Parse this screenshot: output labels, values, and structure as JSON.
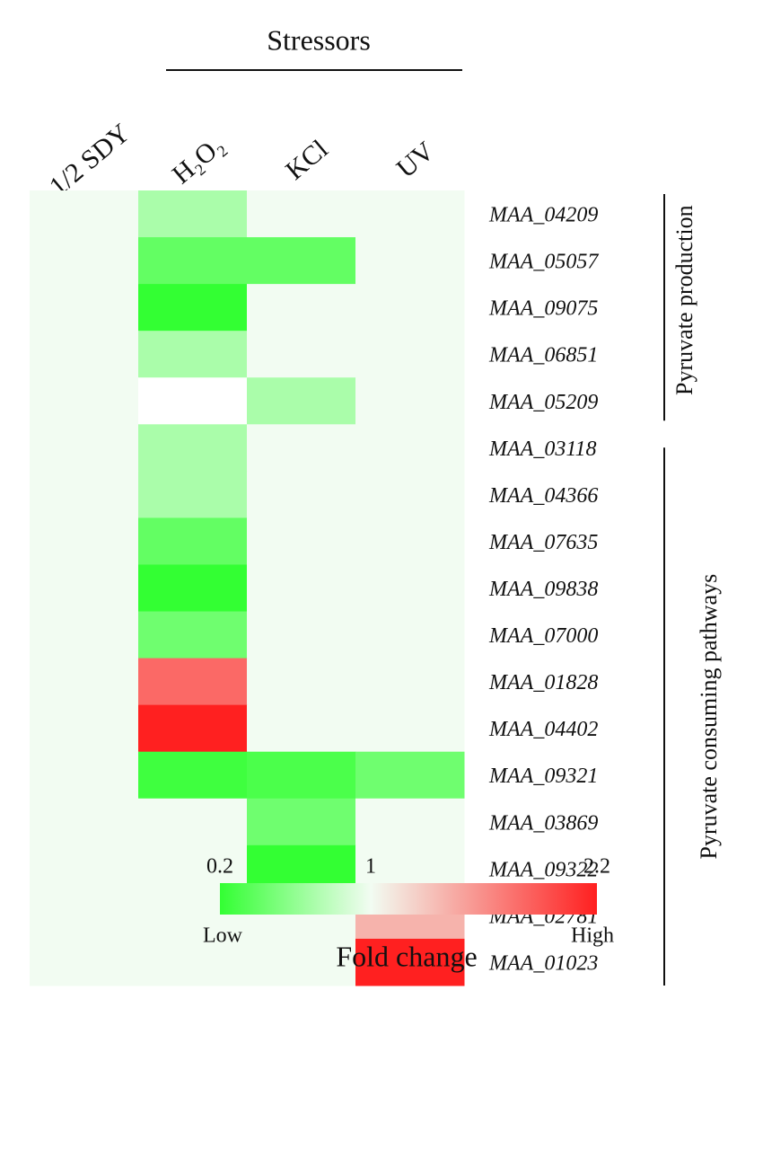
{
  "chart_data": {
    "type": "heatmap",
    "title": "Stressors",
    "x": [
      "1/2 SDY",
      "H₂O₂",
      "KCl",
      "UV"
    ],
    "categories": [
      "MAA_04209",
      "MAA_05057",
      "MAA_09075",
      "MAA_06851",
      "MAA_05209",
      "MAA_03118",
      "MAA_04366",
      "MAA_07635",
      "MAA_09838",
      "MAA_07000",
      "MAA_01828",
      "MAA_04402",
      "MAA_09321",
      "MAA_03869",
      "MAA_09322",
      "MAA_02781",
      "MAA_01023"
    ],
    "values": [
      [
        1,
        0.7,
        1,
        1
      ],
      [
        1,
        0.4,
        0.4,
        1
      ],
      [
        1,
        0.2,
        1,
        1
      ],
      [
        1,
        0.7,
        1,
        1
      ],
      [
        1,
        null,
        0.7,
        1
      ],
      [
        1,
        0.7,
        1,
        1
      ],
      [
        1,
        0.7,
        1,
        1
      ],
      [
        1,
        0.4,
        1,
        1
      ],
      [
        1,
        0.2,
        1,
        1
      ],
      [
        1,
        0.45,
        1,
        1
      ],
      [
        1,
        1.8,
        1,
        1
      ],
      [
        1,
        2.2,
        1,
        1
      ],
      [
        1,
        0.25,
        0.3,
        0.45
      ],
      [
        1,
        1,
        0.45,
        1
      ],
      [
        1,
        1,
        0.2,
        1
      ],
      [
        1,
        1,
        1,
        1.4
      ],
      [
        1,
        1,
        1,
        2.2
      ]
    ],
    "groups": [
      {
        "label": "Pyruvate production",
        "rows": 5
      },
      {
        "label": "Pyruvate consuming pathways",
        "rows": 12
      }
    ],
    "colors": [
      "#33ff33",
      "#f2fcf2",
      "#ff2020"
    ],
    "clim": [
      0.2,
      2.2
    ],
    "colorbar": {
      "ticks": [
        0.2,
        1,
        2.2
      ],
      "low": "Low",
      "high": "High",
      "label": "Fold change"
    }
  }
}
